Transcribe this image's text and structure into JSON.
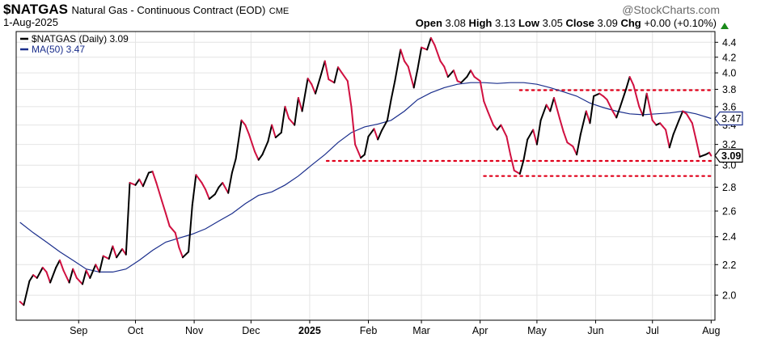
{
  "header": {
    "symbol": "$NATGAS",
    "description": "Natural Gas - Continuous Contract (EOD)",
    "exchange": "CME",
    "date": "1-Aug-2025",
    "watermark": "@StockCharts.com",
    "stats": {
      "open_label": "Open",
      "open": "3.08",
      "high_label": "High",
      "high": "3.13",
      "low_label": "Low",
      "low": "3.05",
      "close_label": "Close",
      "close": "3.09",
      "chg_label": "Chg",
      "chg": "+0.00 (+0.10%)"
    }
  },
  "colors": {
    "up": "#000000",
    "down": "#d01040",
    "ma": "#1a2e8c",
    "support_lines": "#e0001a",
    "grid": "#e4e4e4",
    "chg_up": "#1a8a1a"
  },
  "chart_data": {
    "type": "line",
    "x_tick_labels": [
      "Sep",
      "Oct",
      "Nov",
      "Dec",
      "2025",
      "Feb",
      "Mar",
      "Apr",
      "May",
      "Jun",
      "Jul",
      "Aug"
    ],
    "y_tick_labels": [
      "2.0",
      "2.2",
      "2.4",
      "2.6",
      "2.8",
      "3.0",
      "3.2",
      "3.4",
      "3.6",
      "3.8",
      "4.0",
      "4.2",
      "4.4"
    ],
    "ylim": [
      1.85,
      4.55
    ],
    "y_scale": "log",
    "legend": [
      {
        "label": "$NATGAS (Daily) 3.09",
        "swatch": "up"
      },
      {
        "label": "MA(50) 3.47",
        "swatch": "ma"
      }
    ],
    "last_value_tags": [
      {
        "value": 3.47,
        "label": "3.47",
        "series": "MA(50)"
      },
      {
        "value": 3.09,
        "label": "3.09",
        "series": "$NATGAS"
      }
    ],
    "horizontal_lines": [
      {
        "value": 3.79,
        "from": "2025-04-22",
        "to": "2025-08-01"
      },
      {
        "value": 3.04,
        "from": "2025-01-10",
        "to": "2025-08-01"
      },
      {
        "value": 2.9,
        "from": "2025-04-03",
        "to": "2025-08-01"
      }
    ],
    "series": [
      {
        "name": "$NATGAS (Daily)",
        "points": [
          [
            "2024-08-01",
            1.96
          ],
          [
            "2024-08-03",
            1.94
          ],
          [
            "2024-08-06",
            2.09
          ],
          [
            "2024-08-08",
            2.13
          ],
          [
            "2024-08-10",
            2.11
          ],
          [
            "2024-08-13",
            2.18
          ],
          [
            "2024-08-15",
            2.15
          ],
          [
            "2024-08-17",
            2.08
          ],
          [
            "2024-08-20",
            2.18
          ],
          [
            "2024-08-22",
            2.23
          ],
          [
            "2024-08-24",
            2.16
          ],
          [
            "2024-08-27",
            2.08
          ],
          [
            "2024-08-29",
            2.17
          ],
          [
            "2024-08-31",
            2.11
          ],
          [
            "2024-09-03",
            2.07
          ],
          [
            "2024-09-05",
            2.16
          ],
          [
            "2024-09-07",
            2.11
          ],
          [
            "2024-09-10",
            2.2
          ],
          [
            "2024-09-12",
            2.15
          ],
          [
            "2024-09-14",
            2.26
          ],
          [
            "2024-09-17",
            2.24
          ],
          [
            "2024-09-19",
            2.33
          ],
          [
            "2024-09-21",
            2.25
          ],
          [
            "2024-09-24",
            2.31
          ],
          [
            "2024-09-26",
            2.27
          ],
          [
            "2024-09-28",
            2.84
          ],
          [
            "2024-10-01",
            2.82
          ],
          [
            "2024-10-03",
            2.87
          ],
          [
            "2024-10-05",
            2.81
          ],
          [
            "2024-10-08",
            2.93
          ],
          [
            "2024-10-10",
            2.94
          ],
          [
            "2024-10-12",
            2.84
          ],
          [
            "2024-10-15",
            2.68
          ],
          [
            "2024-10-17",
            2.58
          ],
          [
            "2024-10-19",
            2.48
          ],
          [
            "2024-10-22",
            2.43
          ],
          [
            "2024-10-24",
            2.32
          ],
          [
            "2024-10-26",
            2.25
          ],
          [
            "2024-10-29",
            2.29
          ],
          [
            "2024-10-31",
            2.65
          ],
          [
            "2024-11-02",
            2.91
          ],
          [
            "2024-11-05",
            2.84
          ],
          [
            "2024-11-07",
            2.78
          ],
          [
            "2024-11-09",
            2.7
          ],
          [
            "2024-11-12",
            2.74
          ],
          [
            "2024-11-14",
            2.8
          ],
          [
            "2024-11-16",
            2.84
          ],
          [
            "2024-11-19",
            2.75
          ],
          [
            "2024-11-21",
            2.93
          ],
          [
            "2024-11-23",
            3.06
          ],
          [
            "2024-11-26",
            3.45
          ],
          [
            "2024-11-28",
            3.4
          ],
          [
            "2024-11-30",
            3.3
          ],
          [
            "2024-12-03",
            3.13
          ],
          [
            "2024-12-05",
            3.05
          ],
          [
            "2024-12-07",
            3.1
          ],
          [
            "2024-12-10",
            3.23
          ],
          [
            "2024-12-12",
            3.4
          ],
          [
            "2024-12-14",
            3.27
          ],
          [
            "2024-12-17",
            3.32
          ],
          [
            "2024-12-19",
            3.6
          ],
          [
            "2024-12-21",
            3.47
          ],
          [
            "2024-12-24",
            3.4
          ],
          [
            "2024-12-26",
            3.7
          ],
          [
            "2024-12-28",
            3.55
          ],
          [
            "2024-12-31",
            3.93
          ],
          [
            "2025-01-02",
            3.86
          ],
          [
            "2025-01-04",
            3.75
          ],
          [
            "2025-01-07",
            3.98
          ],
          [
            "2025-01-09",
            4.15
          ],
          [
            "2025-01-11",
            3.92
          ],
          [
            "2025-01-14",
            3.88
          ],
          [
            "2025-01-16",
            4.07
          ],
          [
            "2025-01-18",
            4.0
          ],
          [
            "2025-01-21",
            3.9
          ],
          [
            "2025-01-23",
            3.6
          ],
          [
            "2025-01-25",
            3.2
          ],
          [
            "2025-01-28",
            3.07
          ],
          [
            "2025-01-30",
            3.1
          ],
          [
            "2025-02-01",
            3.28
          ],
          [
            "2025-02-04",
            3.36
          ],
          [
            "2025-02-06",
            3.25
          ],
          [
            "2025-02-08",
            3.34
          ],
          [
            "2025-02-11",
            3.45
          ],
          [
            "2025-02-13",
            3.68
          ],
          [
            "2025-02-15",
            3.9
          ],
          [
            "2025-02-18",
            4.3
          ],
          [
            "2025-02-20",
            4.15
          ],
          [
            "2025-02-22",
            4.08
          ],
          [
            "2025-02-25",
            3.82
          ],
          [
            "2025-02-27",
            4.05
          ],
          [
            "2025-03-01",
            4.33
          ],
          [
            "2025-03-04",
            4.3
          ],
          [
            "2025-03-06",
            4.46
          ],
          [
            "2025-03-08",
            4.36
          ],
          [
            "2025-03-11",
            4.15
          ],
          [
            "2025-03-13",
            4.08
          ],
          [
            "2025-03-15",
            3.95
          ],
          [
            "2025-03-18",
            4.03
          ],
          [
            "2025-03-20",
            3.9
          ],
          [
            "2025-03-22",
            3.88
          ],
          [
            "2025-03-25",
            3.95
          ],
          [
            "2025-03-27",
            4.03
          ],
          [
            "2025-03-29",
            3.95
          ],
          [
            "2025-04-01",
            3.9
          ],
          [
            "2025-04-03",
            3.66
          ],
          [
            "2025-04-05",
            3.55
          ],
          [
            "2025-04-08",
            3.4
          ],
          [
            "2025-04-10",
            3.35
          ],
          [
            "2025-04-12",
            3.4
          ],
          [
            "2025-04-15",
            3.28
          ],
          [
            "2025-04-17",
            3.1
          ],
          [
            "2025-04-19",
            2.95
          ],
          [
            "2025-04-22",
            2.92
          ],
          [
            "2025-04-24",
            3.05
          ],
          [
            "2025-04-26",
            3.25
          ],
          [
            "2025-04-29",
            3.35
          ],
          [
            "2025-05-01",
            3.2
          ],
          [
            "2025-05-03",
            3.45
          ],
          [
            "2025-05-06",
            3.62
          ],
          [
            "2025-05-08",
            3.55
          ],
          [
            "2025-05-10",
            3.7
          ],
          [
            "2025-05-13",
            3.47
          ],
          [
            "2025-05-15",
            3.33
          ],
          [
            "2025-05-17",
            3.22
          ],
          [
            "2025-05-20",
            3.18
          ],
          [
            "2025-05-22",
            3.1
          ],
          [
            "2025-05-24",
            3.3
          ],
          [
            "2025-05-27",
            3.55
          ],
          [
            "2025-05-29",
            3.42
          ],
          [
            "2025-05-31",
            3.72
          ],
          [
            "2025-06-03",
            3.75
          ],
          [
            "2025-06-05",
            3.72
          ],
          [
            "2025-06-07",
            3.68
          ],
          [
            "2025-06-10",
            3.55
          ],
          [
            "2025-06-12",
            3.48
          ],
          [
            "2025-06-14",
            3.6
          ],
          [
            "2025-06-17",
            3.8
          ],
          [
            "2025-06-19",
            3.95
          ],
          [
            "2025-06-21",
            3.85
          ],
          [
            "2025-06-24",
            3.6
          ],
          [
            "2025-06-26",
            3.5
          ],
          [
            "2025-06-28",
            3.75
          ],
          [
            "2025-07-01",
            3.45
          ],
          [
            "2025-07-03",
            3.4
          ],
          [
            "2025-07-05",
            3.42
          ],
          [
            "2025-07-08",
            3.35
          ],
          [
            "2025-07-10",
            3.17
          ],
          [
            "2025-07-12",
            3.3
          ],
          [
            "2025-07-15",
            3.45
          ],
          [
            "2025-07-17",
            3.55
          ],
          [
            "2025-07-19",
            3.52
          ],
          [
            "2025-07-22",
            3.42
          ],
          [
            "2025-07-24",
            3.25
          ],
          [
            "2025-07-26",
            3.08
          ],
          [
            "2025-07-29",
            3.1
          ],
          [
            "2025-07-31",
            3.12
          ],
          [
            "2025-08-01",
            3.09
          ]
        ]
      },
      {
        "name": "MA(50)",
        "points": [
          [
            "2024-08-01",
            2.51
          ],
          [
            "2024-08-08",
            2.43
          ],
          [
            "2024-08-15",
            2.36
          ],
          [
            "2024-08-22",
            2.29
          ],
          [
            "2024-08-29",
            2.23
          ],
          [
            "2024-09-05",
            2.17
          ],
          [
            "2024-09-12",
            2.15
          ],
          [
            "2024-09-19",
            2.15
          ],
          [
            "2024-09-26",
            2.17
          ],
          [
            "2024-10-03",
            2.23
          ],
          [
            "2024-10-10",
            2.3
          ],
          [
            "2024-10-17",
            2.36
          ],
          [
            "2024-10-24",
            2.39
          ],
          [
            "2024-10-31",
            2.42
          ],
          [
            "2024-11-07",
            2.46
          ],
          [
            "2024-11-14",
            2.52
          ],
          [
            "2024-11-21",
            2.58
          ],
          [
            "2024-11-28",
            2.66
          ],
          [
            "2024-12-05",
            2.73
          ],
          [
            "2024-12-12",
            2.76
          ],
          [
            "2024-12-19",
            2.82
          ],
          [
            "2024-12-26",
            2.9
          ],
          [
            "2025-01-02",
            3.0
          ],
          [
            "2025-01-09",
            3.1
          ],
          [
            "2025-01-16",
            3.22
          ],
          [
            "2025-01-23",
            3.32
          ],
          [
            "2025-01-30",
            3.38
          ],
          [
            "2025-02-06",
            3.41
          ],
          [
            "2025-02-13",
            3.45
          ],
          [
            "2025-02-20",
            3.55
          ],
          [
            "2025-02-27",
            3.68
          ],
          [
            "2025-03-06",
            3.76
          ],
          [
            "2025-03-13",
            3.82
          ],
          [
            "2025-03-20",
            3.86
          ],
          [
            "2025-03-27",
            3.88
          ],
          [
            "2025-04-03",
            3.88
          ],
          [
            "2025-04-10",
            3.87
          ],
          [
            "2025-04-17",
            3.88
          ],
          [
            "2025-04-24",
            3.88
          ],
          [
            "2025-05-01",
            3.86
          ],
          [
            "2025-05-08",
            3.82
          ],
          [
            "2025-05-15",
            3.77
          ],
          [
            "2025-05-22",
            3.72
          ],
          [
            "2025-05-29",
            3.64
          ],
          [
            "2025-06-05",
            3.59
          ],
          [
            "2025-06-12",
            3.55
          ],
          [
            "2025-06-19",
            3.52
          ],
          [
            "2025-06-26",
            3.51
          ],
          [
            "2025-07-03",
            3.52
          ],
          [
            "2025-07-10",
            3.53
          ],
          [
            "2025-07-17",
            3.55
          ],
          [
            "2025-07-24",
            3.52
          ],
          [
            "2025-08-01",
            3.47
          ]
        ]
      }
    ]
  }
}
